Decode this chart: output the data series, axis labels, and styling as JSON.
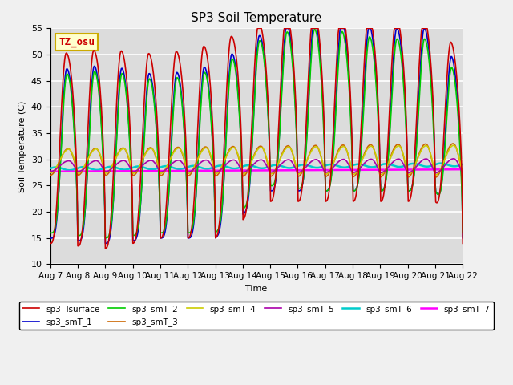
{
  "title": "SP3 Soil Temperature",
  "ylabel": "Soil Temperature (C)",
  "xlabel": "Time",
  "annotation_text": "TZ_osu",
  "annotation_bg": "#FFFFCC",
  "annotation_border": "#CCAA00",
  "annotation_text_color": "#CC0000",
  "n_days": 15,
  "ylim": [
    10,
    55
  ],
  "yticks": [
    10,
    15,
    20,
    25,
    30,
    35,
    40,
    45,
    50,
    55
  ],
  "x_tick_labels": [
    "Aug 7",
    "Aug 8",
    "Aug 9",
    "Aug 10",
    "Aug 11",
    "Aug 12",
    "Aug 13",
    "Aug 14",
    "Aug 15",
    "Aug 16",
    "Aug 17",
    "Aug 18",
    "Aug 19",
    "Aug 20",
    "Aug 21",
    "Aug 22"
  ],
  "series_colors": {
    "sp3_Tsurface": "#CC0000",
    "sp3_smT_1": "#0000CC",
    "sp3_smT_2": "#00CC00",
    "sp3_smT_3": "#CC6600",
    "sp3_smT_4": "#CCCC00",
    "sp3_smT_5": "#AA00AA",
    "sp3_smT_6": "#00CCCC",
    "sp3_smT_7": "#FF00FF"
  },
  "plot_bg": "#DCDCDC",
  "grid_color": "#FFFFFF",
  "fig_bg": "#F0F0F0"
}
